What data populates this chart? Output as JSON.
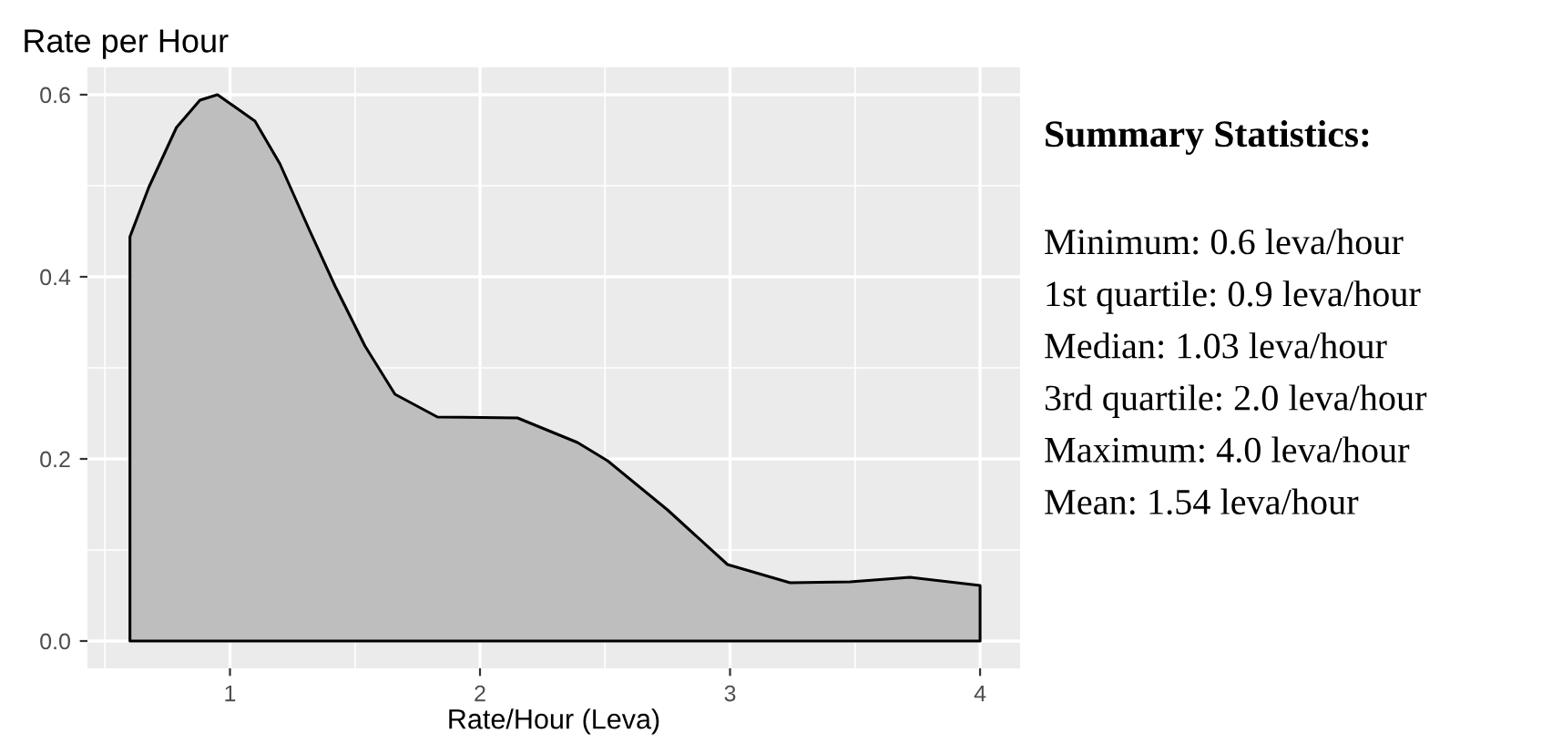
{
  "chart_data": {
    "type": "area",
    "title": "Rate per Hour",
    "xlabel": "Rate/Hour (Leva)",
    "x": [
      0.6,
      0.675,
      0.786,
      0.88,
      0.95,
      1.1,
      1.2,
      1.32,
      1.42,
      1.54,
      1.66,
      1.83,
      2.15,
      2.39,
      2.51,
      2.75,
      2.99,
      3.24,
      3.48,
      3.72,
      4.0
    ],
    "series": [
      {
        "color": "#bebebe",
        "values": [
          0.444,
          0.498,
          0.564,
          0.594,
          0.6,
          0.571,
          0.524,
          0.45,
          0.39,
          0.324,
          0.271,
          0.246,
          0.245,
          0.218,
          0.198,
          0.144,
          0.084,
          0.064,
          0.065,
          0.07,
          0.061
        ]
      }
    ],
    "xlim": [
      0.43,
      4.16
    ],
    "ylim": [
      -0.03,
      0.63
    ],
    "xticks": [
      1,
      2,
      3,
      4
    ],
    "yticks": [
      {
        "value": 0,
        "label": "0.0"
      },
      0.2,
      0.4,
      0.6
    ],
    "grid": true,
    "annotations": [
      "Summary Statistics:",
      "Minimum: 0.6 leva/hour",
      "1st quartile: 0.9 leva/hour",
      "Median: 1.03 leva/hour",
      "3rd quartile: 2.0 leva/hour",
      "Maximum: 4.0 leva/hour",
      "Mean: 1.54 leva/hour"
    ]
  }
}
